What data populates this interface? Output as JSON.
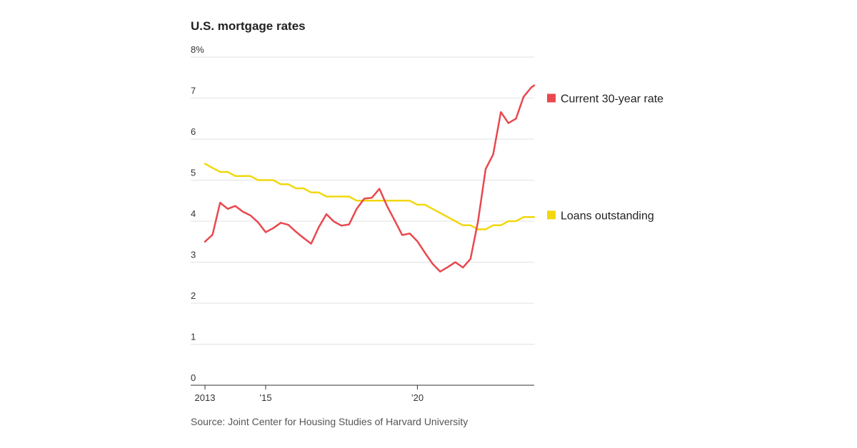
{
  "chart_data": {
    "type": "line",
    "title": "U.S. mortgage rates",
    "source": "Source: Joint Center for Housing Studies of Harvard University",
    "xlim": [
      2013.0,
      2023.85
    ],
    "ylim": [
      0,
      8
    ],
    "y_ticks": [
      {
        "value": 8,
        "label": "8%"
      },
      {
        "value": 7,
        "label": "7"
      },
      {
        "value": 6,
        "label": "6"
      },
      {
        "value": 5,
        "label": "5"
      },
      {
        "value": 4,
        "label": "4"
      },
      {
        "value": 3,
        "label": "3"
      },
      {
        "value": 2,
        "label": "2"
      },
      {
        "value": 1,
        "label": "1"
      },
      {
        "value": 0,
        "label": "0"
      }
    ],
    "x_ticks": [
      {
        "value": 2013,
        "label": "2013"
      },
      {
        "value": 2015,
        "label": "’15"
      },
      {
        "value": 2020,
        "label": "’20"
      }
    ],
    "grid": true,
    "series": [
      {
        "name": "Current 30-year rate",
        "color": "#e8484e",
        "x": [
          2013.0,
          2013.25,
          2013.5,
          2013.75,
          2014.0,
          2014.25,
          2014.5,
          2014.75,
          2015.0,
          2015.25,
          2015.5,
          2015.75,
          2016.0,
          2016.25,
          2016.5,
          2016.75,
          2017.0,
          2017.25,
          2017.5,
          2017.75,
          2018.0,
          2018.25,
          2018.5,
          2018.75,
          2019.0,
          2019.25,
          2019.5,
          2019.75,
          2020.0,
          2020.25,
          2020.5,
          2020.75,
          2021.0,
          2021.25,
          2021.5,
          2021.75,
          2022.0,
          2022.25,
          2022.5,
          2022.75,
          2023.0,
          2023.25,
          2023.5,
          2023.75,
          2023.85
        ],
        "values": [
          3.5,
          3.67,
          4.45,
          4.3,
          4.37,
          4.23,
          4.14,
          3.97,
          3.73,
          3.83,
          3.96,
          3.91,
          3.74,
          3.59,
          3.45,
          3.85,
          4.17,
          3.99,
          3.89,
          3.92,
          4.3,
          4.55,
          4.57,
          4.79,
          4.37,
          4.02,
          3.66,
          3.7,
          3.51,
          3.23,
          2.96,
          2.77,
          2.88,
          3.0,
          2.87,
          3.08,
          4.0,
          5.27,
          5.63,
          6.66,
          6.39,
          6.5,
          7.03,
          7.26,
          7.31
        ]
      },
      {
        "name": "Loans outstanding",
        "color": "#f2d70d",
        "x": [
          2013.0,
          2013.25,
          2013.5,
          2013.75,
          2014.0,
          2014.25,
          2014.5,
          2014.75,
          2015.0,
          2015.25,
          2015.5,
          2015.75,
          2016.0,
          2016.25,
          2016.5,
          2016.75,
          2017.0,
          2017.25,
          2017.5,
          2017.75,
          2018.0,
          2018.25,
          2018.5,
          2018.75,
          2019.0,
          2019.25,
          2019.5,
          2019.75,
          2020.0,
          2020.25,
          2020.5,
          2020.75,
          2021.0,
          2021.25,
          2021.5,
          2021.75,
          2022.0,
          2022.25,
          2022.5,
          2022.75,
          2023.0,
          2023.25,
          2023.5,
          2023.75,
          2023.85
        ],
        "values": [
          5.4,
          5.3,
          5.2,
          5.2,
          5.1,
          5.1,
          5.1,
          5.0,
          5.0,
          5.0,
          4.9,
          4.9,
          4.8,
          4.8,
          4.7,
          4.7,
          4.6,
          4.6,
          4.6,
          4.6,
          4.5,
          4.5,
          4.5,
          4.5,
          4.5,
          4.5,
          4.5,
          4.5,
          4.4,
          4.4,
          4.3,
          4.2,
          4.1,
          4.0,
          3.9,
          3.9,
          3.8,
          3.8,
          3.9,
          3.9,
          4.0,
          4.0,
          4.1,
          4.1,
          4.1
        ]
      }
    ]
  }
}
